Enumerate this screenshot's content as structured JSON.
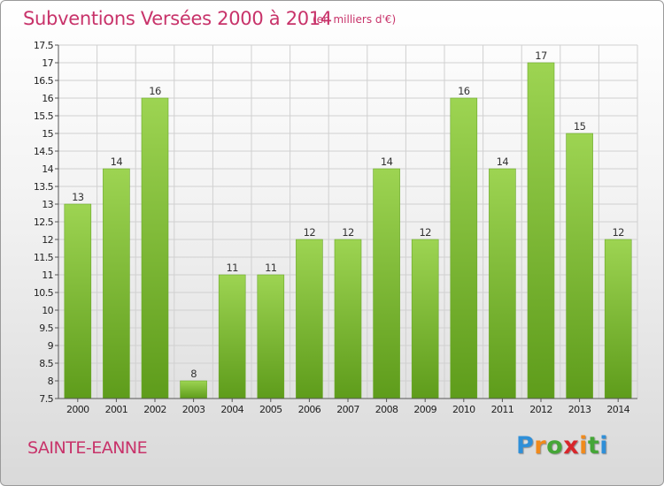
{
  "header": {
    "title": "Subventions Versées 2000 à 2014",
    "subtitle": "(en milliers d'€)"
  },
  "footer": {
    "city": "SAINTE-EANNE",
    "logo_letters": [
      "P",
      "r",
      "o",
      "x",
      "i",
      "t",
      "i"
    ],
    "logo_colors": [
      "#2f8fd8",
      "#f08a1c",
      "#45a637",
      "#d8262b",
      "#f08a1c",
      "#45a637",
      "#2f8fd8"
    ]
  },
  "chart_data": {
    "type": "bar",
    "title": "Subventions Versées 2000 à 2014",
    "subtitle": "(en milliers d'€)",
    "categories": [
      "2000",
      "2001",
      "2002",
      "2003",
      "2004",
      "2005",
      "2006",
      "2007",
      "2008",
      "2009",
      "2010",
      "2011",
      "2012",
      "2013",
      "2014"
    ],
    "values": [
      13,
      14,
      16,
      8,
      11,
      11,
      12,
      12,
      14,
      12,
      16,
      14,
      17,
      15,
      12
    ],
    "value_labels": [
      "13",
      "14",
      "16",
      "8",
      "11",
      "11",
      "12",
      "12",
      "14",
      "12",
      "16",
      "14",
      "17",
      "15",
      "12"
    ],
    "ylim": [
      7.5,
      17.5
    ],
    "yticks": [
      "7.5",
      "8",
      "8.5",
      "9",
      "9.5",
      "10",
      "10.5",
      "11",
      "11.5",
      "12",
      "12.5",
      "13",
      "13.5",
      "14",
      "14.5",
      "15",
      "15.5",
      "16",
      "16.5",
      "17",
      "17.5"
    ],
    "grid": true,
    "legend": "none",
    "bar_color_top": "#9dd452",
    "bar_color_bottom": "#5e9c1b"
  }
}
